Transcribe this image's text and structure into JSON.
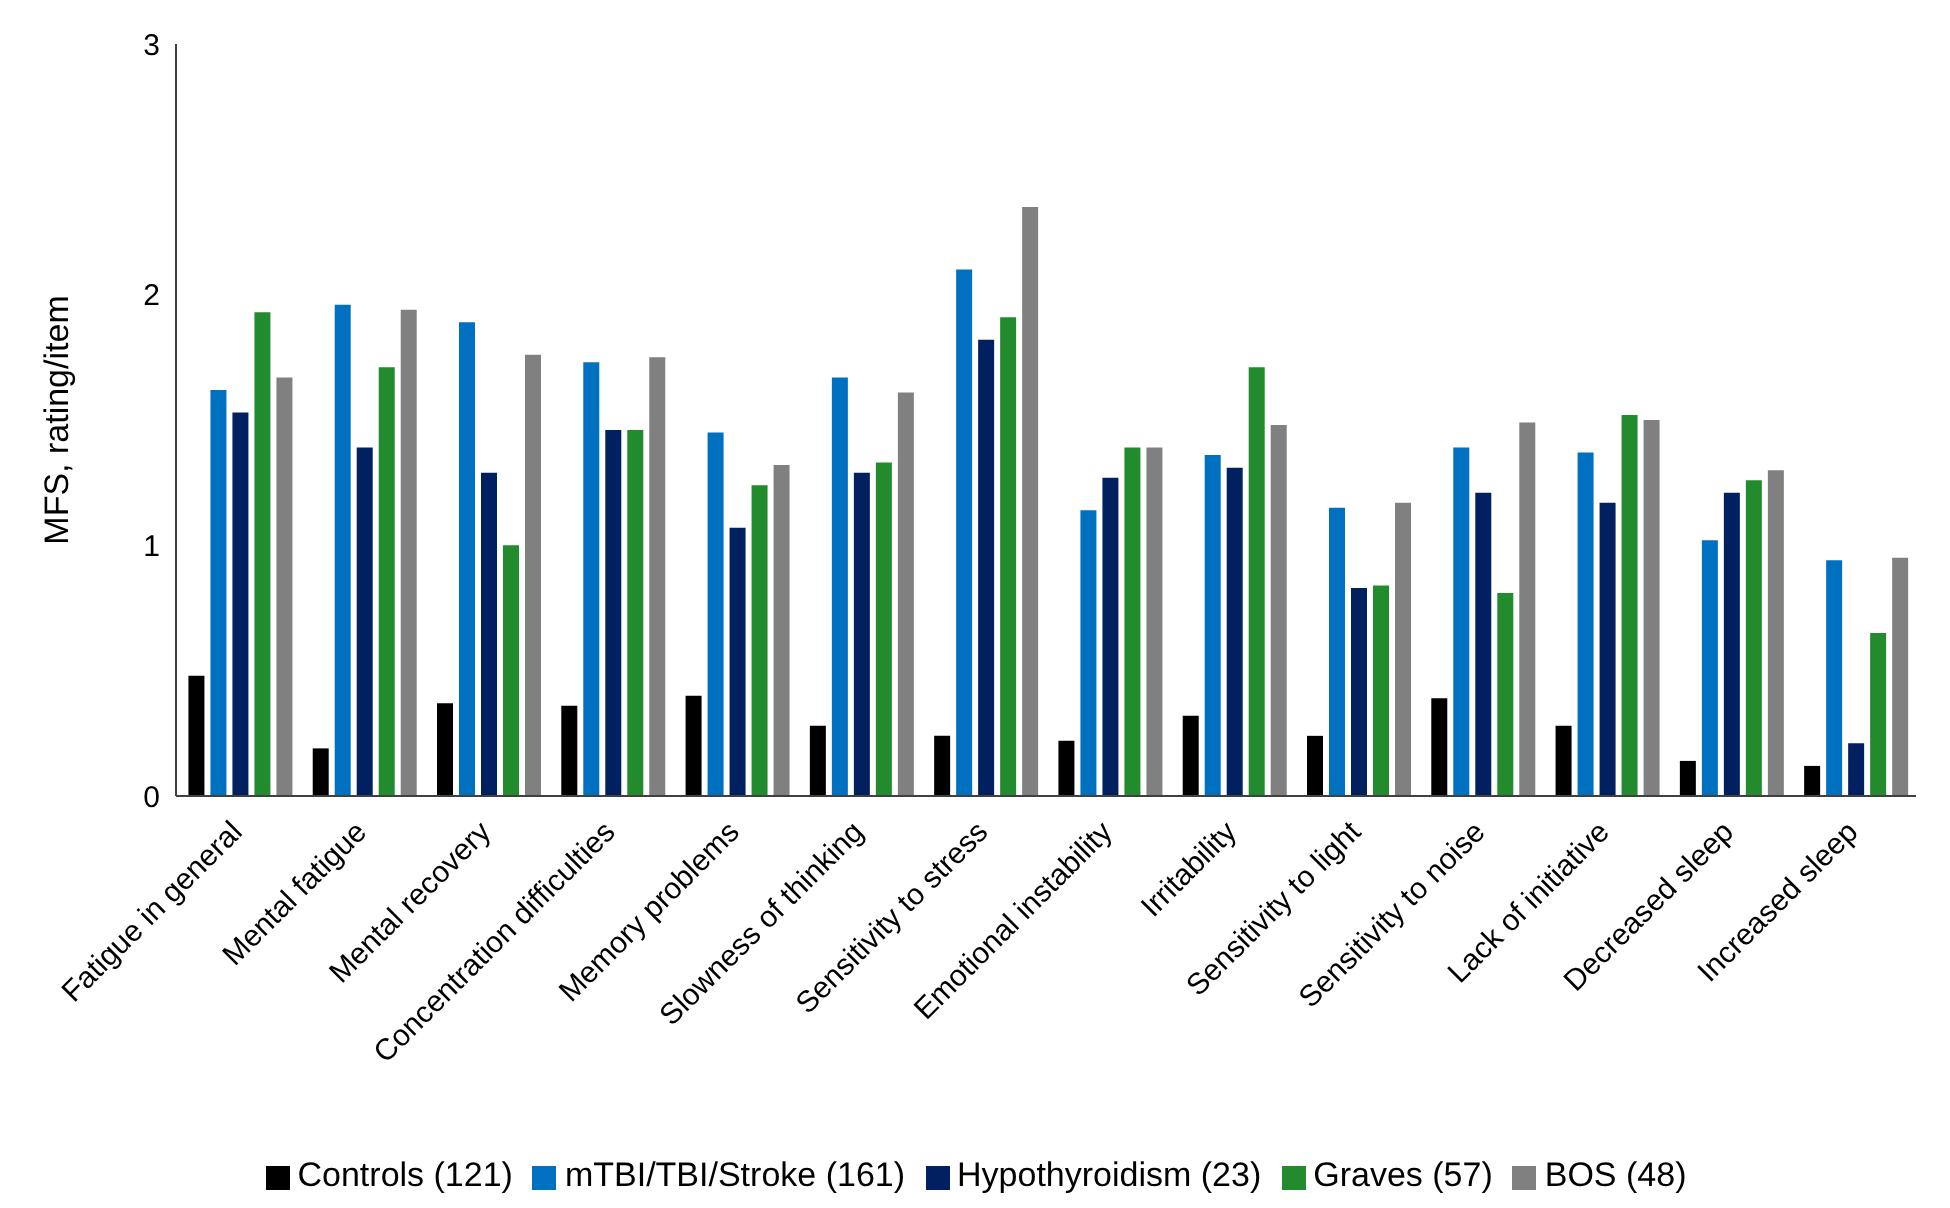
{
  "chart_data": {
    "type": "bar",
    "ylabel": "MFS, rating/item",
    "categories": [
      "Fatigue in general",
      "Mental fatigue",
      "Mental recovery",
      "Concentration difficulties",
      "Memory problems",
      "Slowness of thinking",
      "Sensitivity to stress",
      "Emotional instability",
      "Irritability",
      "Sensitivity to light",
      "Sensitivity to noise",
      "Lack of initiative",
      "Decreased sleep",
      "Increased sleep"
    ],
    "series": [
      {
        "name": "Controls (121)",
        "color": "#000000",
        "values": [
          0.48,
          0.19,
          0.37,
          0.36,
          0.4,
          0.28,
          0.24,
          0.22,
          0.32,
          0.24,
          0.39,
          0.28,
          0.14,
          0.12
        ]
      },
      {
        "name": "mTBI/TBI/Stroke (161)",
        "color": "#0070c0",
        "values": [
          1.62,
          1.96,
          1.89,
          1.73,
          1.45,
          1.67,
          2.1,
          1.14,
          1.36,
          1.15,
          1.39,
          1.37,
          1.02,
          0.94
        ]
      },
      {
        "name": "Hypothyroidism (23)",
        "color": "#002060",
        "values": [
          1.53,
          1.39,
          1.29,
          1.46,
          1.07,
          1.29,
          1.82,
          1.27,
          1.31,
          0.83,
          1.21,
          1.17,
          1.21,
          0.21
        ]
      },
      {
        "name": "Graves (57)",
        "color": "#228b2e",
        "values": [
          1.93,
          1.71,
          1.0,
          1.46,
          1.24,
          1.33,
          1.91,
          1.39,
          1.71,
          0.84,
          0.81,
          1.52,
          1.26,
          0.65
        ]
      },
      {
        "name": "BOS (48)",
        "color": "#808080",
        "values": [
          1.67,
          1.94,
          1.76,
          1.75,
          1.32,
          1.61,
          2.35,
          1.39,
          1.48,
          1.17,
          1.49,
          1.5,
          1.3,
          0.95
        ]
      }
    ],
    "ylim": [
      0,
      3
    ],
    "yticks": [
      0,
      1,
      2,
      3
    ],
    "grid": false,
    "legend": "bottom"
  }
}
